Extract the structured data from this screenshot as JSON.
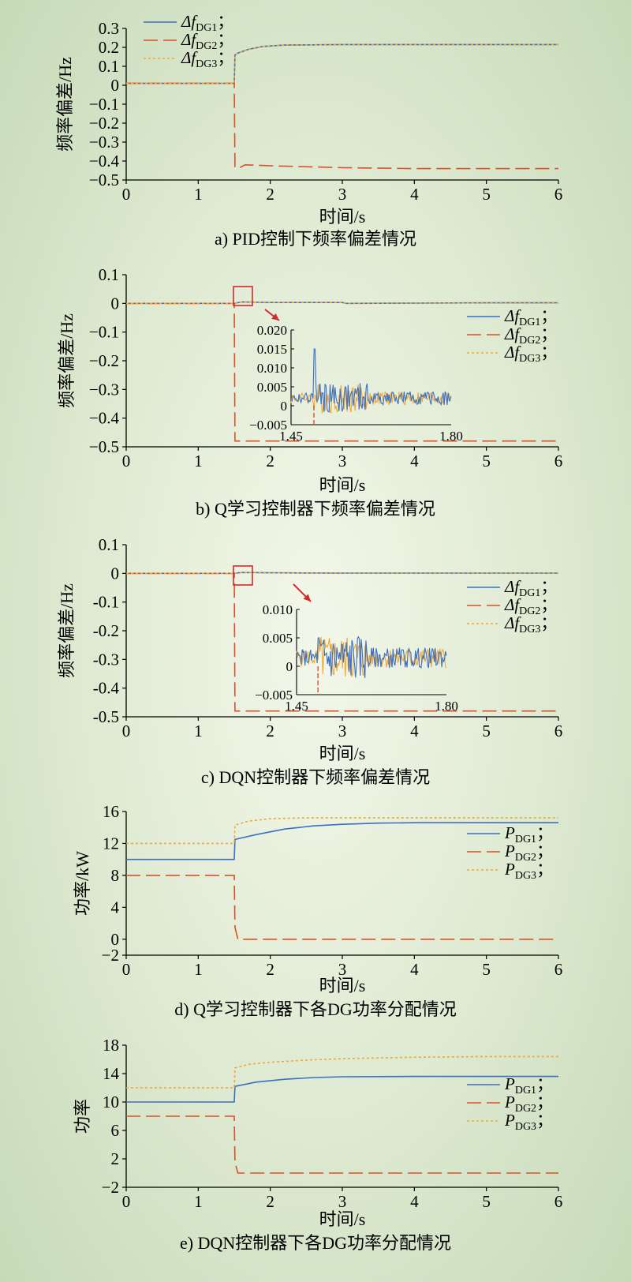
{
  "chart_data": [
    {
      "type": "line",
      "caption": "a) PID控制下频率偏差情况",
      "xlabel": "时间/s",
      "ylabel": "频率偏差/Hz",
      "xlim": [
        0,
        6
      ],
      "ylim": [
        -0.5,
        0.3
      ],
      "xticks": [
        0,
        1,
        2,
        3,
        4,
        5,
        6
      ],
      "xtick_labels": [
        "0",
        "1",
        "2",
        "3",
        "4",
        "5",
        "6"
      ],
      "yticks": [
        0.3,
        0.2,
        0.1,
        0,
        -0.1,
        -0.2,
        -0.3,
        -0.4,
        -0.5
      ],
      "ytick_labels": [
        "0.3",
        "0.2",
        "0.1",
        "0",
        "−0.1",
        "−0.2",
        "−0.3",
        "−0.4",
        "−0.5"
      ],
      "legend": "top-left",
      "series": [
        {
          "name": "ΔfDG1",
          "legend_main": "Δf",
          "legend_sub": "DG1",
          "color": "#3a6fc4",
          "dash": "solid",
          "x": [
            0,
            1.5,
            1.51,
            1.55,
            1.7,
            1.9,
            2.2,
            3,
            4,
            5,
            6
          ],
          "y": [
            0.01,
            0.01,
            0.16,
            0.17,
            0.19,
            0.205,
            0.212,
            0.215,
            0.215,
            0.215,
            0.215
          ]
        },
        {
          "name": "ΔfDG2",
          "legend_main": "Δf",
          "legend_sub": "DG2",
          "color": "#d9512c",
          "dash": "long",
          "x": [
            0,
            1.5,
            1.51,
            1.55,
            1.65,
            2.0,
            3,
            4,
            5,
            6
          ],
          "y": [
            0.01,
            0.01,
            -0.43,
            -0.44,
            -0.42,
            -0.425,
            -0.435,
            -0.44,
            -0.44,
            -0.44
          ]
        },
        {
          "name": "ΔfDG3",
          "legend_main": "Δf",
          "legend_sub": "DG3",
          "color": "#f0a830",
          "dash": "dot",
          "x": [
            0,
            1.5,
            1.51,
            1.55,
            1.7,
            1.9,
            2.2,
            3,
            4,
            5,
            6
          ],
          "y": [
            0.01,
            0.01,
            0.16,
            0.17,
            0.19,
            0.205,
            0.212,
            0.215,
            0.215,
            0.215,
            0.215
          ]
        }
      ]
    },
    {
      "type": "line",
      "caption": "b) Q学习控制器下频率偏差情况",
      "xlabel": "时间/s",
      "ylabel": "频率偏差/Hz",
      "xlim": [
        0,
        6
      ],
      "ylim": [
        -0.5,
        0.1
      ],
      "xticks": [
        0,
        1,
        2,
        3,
        4,
        5,
        6
      ],
      "xtick_labels": [
        "0",
        "1",
        "2",
        "3",
        "4",
        "5",
        "6"
      ],
      "yticks": [
        0.1,
        0,
        -0.1,
        -0.2,
        -0.3,
        -0.4,
        -0.5
      ],
      "ytick_labels": [
        "0.1",
        "0",
        "−0.1",
        "−0.2",
        "−0.3",
        "−0.4",
        "−0.5"
      ],
      "legend": "right",
      "series": [
        {
          "name": "ΔfDG1",
          "legend_main": "Δf",
          "legend_sub": "DG1",
          "color": "#3a6fc4",
          "dash": "solid",
          "x": [
            0,
            1.5,
            1.6,
            2.0,
            3.0,
            3.05,
            4,
            5,
            6
          ],
          "y": [
            0.0,
            0.0,
            0.005,
            0.003,
            0.003,
            0.0,
            0.001,
            0.002,
            0.002
          ]
        },
        {
          "name": "ΔfDG2",
          "legend_main": "Δf",
          "legend_sub": "DG2",
          "color": "#d9512c",
          "dash": "long",
          "x": [
            0,
            1.5,
            1.51,
            2,
            3,
            4,
            5,
            6
          ],
          "y": [
            0.0,
            0.0,
            -0.48,
            -0.48,
            -0.48,
            -0.48,
            -0.48,
            -0.48
          ]
        },
        {
          "name": "ΔfDG3",
          "legend_main": "Δf",
          "legend_sub": "DG3",
          "color": "#f0a830",
          "dash": "dot",
          "x": [
            0,
            1.5,
            1.6,
            2.0,
            3.0,
            3.05,
            4,
            5,
            6
          ],
          "y": [
            0.0,
            0.0,
            0.005,
            0.003,
            0.003,
            0.0,
            0.001,
            0.002,
            0.002
          ]
        }
      ],
      "inset": {
        "xlim": [
          1.45,
          1.8
        ],
        "ylim": [
          -0.005,
          0.02
        ],
        "xtick_labels": [
          "1.45",
          "1.80"
        ],
        "yticks": [
          0.02,
          0.015,
          0.01,
          0.005,
          0,
          -0.005
        ],
        "ytick_labels": [
          "0.020",
          "0.015",
          "0.010",
          "0.005",
          "0",
          "−0.005"
        ],
        "box_x": [
          1.45,
          1.8
        ],
        "box_y": [
          -0.005,
          0.02
        ]
      }
    },
    {
      "type": "line",
      "caption": "c) DQN控制器下频率偏差情况",
      "xlabel": "时间/s",
      "ylabel": "频率偏差/Hz",
      "xlim": [
        0,
        6
      ],
      "ylim": [
        -0.5,
        0.1
      ],
      "xticks": [
        0,
        1,
        2,
        3,
        4,
        5,
        6
      ],
      "xtick_labels": [
        "0",
        "1",
        "2",
        "3",
        "4",
        "5",
        "6"
      ],
      "yticks": [
        0.1,
        0,
        -0.1,
        -0.2,
        -0.3,
        -0.4,
        -0.5
      ],
      "ytick_labels": [
        "0.1",
        "0",
        "-0.1",
        "-0.2",
        "-0.3",
        "-0.4",
        "-0.5"
      ],
      "legend": "right",
      "series": [
        {
          "name": "ΔfDG1",
          "legend_main": "Δf",
          "legend_sub": "DG1",
          "color": "#3a6fc4",
          "dash": "solid",
          "x": [
            0,
            1.5,
            1.6,
            2.0,
            3.0,
            4,
            5,
            6
          ],
          "y": [
            0.0,
            0.0,
            0.003,
            0.002,
            0.001,
            0.001,
            0.001,
            0.001
          ]
        },
        {
          "name": "ΔfDG2",
          "legend_main": "Δf",
          "legend_sub": "DG2",
          "color": "#d9512c",
          "dash": "long",
          "x": [
            0,
            1.5,
            1.51,
            2,
            3,
            4,
            5,
            6
          ],
          "y": [
            0.0,
            0.0,
            -0.48,
            -0.48,
            -0.48,
            -0.48,
            -0.48,
            -0.48
          ]
        },
        {
          "name": "ΔfDG3",
          "legend_main": "Δf",
          "legend_sub": "DG3",
          "color": "#f0a830",
          "dash": "dot",
          "x": [
            0,
            1.5,
            1.6,
            2.0,
            3.0,
            4,
            5,
            6
          ],
          "y": [
            0.0,
            0.0,
            0.003,
            0.002,
            0.001,
            0.001,
            0.001,
            0.001
          ]
        }
      ],
      "inset": {
        "xlim": [
          1.45,
          1.8
        ],
        "ylim": [
          -0.005,
          0.01
        ],
        "xtick_labels": [
          "1.45",
          "1.80"
        ],
        "yticks": [
          0.01,
          0.005,
          0,
          -0.005
        ],
        "ytick_labels": [
          "0.010",
          "0.005",
          "0",
          "−0.005"
        ]
      }
    },
    {
      "type": "line",
      "caption": "d) Q学习控制器下各DG功率分配情况",
      "xlabel": "时间/s",
      "ylabel": "功率/kW",
      "xlim": [
        0,
        6
      ],
      "ylim": [
        -2,
        16
      ],
      "xticks": [
        0,
        1,
        2,
        3,
        4,
        5,
        6
      ],
      "xtick_labels": [
        "0",
        "1",
        "2",
        "3",
        "4",
        "5",
        "6"
      ],
      "yticks": [
        16,
        12,
        8,
        4,
        0,
        -2
      ],
      "ytick_labels": [
        "16",
        "12",
        "8",
        "4",
        "0",
        "−2"
      ],
      "legend": "right",
      "series": [
        {
          "name": "PDG1",
          "legend_main": "P",
          "legend_sub": "DG1",
          "color": "#3a6fc4",
          "dash": "solid",
          "x": [
            0,
            1.5,
            1.51,
            1.8,
            2.2,
            2.6,
            3,
            3.5,
            4,
            5,
            6
          ],
          "y": [
            10,
            10,
            12.5,
            13.1,
            13.8,
            14.2,
            14.4,
            14.55,
            14.6,
            14.6,
            14.6
          ]
        },
        {
          "name": "PDG2",
          "legend_main": "P",
          "legend_sub": "DG2",
          "color": "#d9512c",
          "dash": "long",
          "x": [
            0,
            1.5,
            1.51,
            1.55,
            2,
            3,
            4,
            5,
            6
          ],
          "y": [
            8,
            8,
            1.5,
            0,
            0,
            0,
            0,
            0,
            0
          ]
        },
        {
          "name": "PDG3",
          "legend_main": "P",
          "legend_sub": "DG3",
          "color": "#f0a830",
          "dash": "dot",
          "x": [
            0,
            1.5,
            1.51,
            1.7,
            2.0,
            2.5,
            3,
            4,
            5,
            6
          ],
          "y": [
            12,
            12,
            14.3,
            14.8,
            15.1,
            15.2,
            15.2,
            15.2,
            15.2,
            15.2
          ]
        }
      ]
    },
    {
      "type": "line",
      "caption": "e) DQN控制器下各DG功率分配情况",
      "xlabel": "时间/s",
      "ylabel": "功率",
      "xlim": [
        0,
        6
      ],
      "ylim": [
        -2,
        18
      ],
      "xticks": [
        0,
        1,
        2,
        3,
        4,
        5,
        6
      ],
      "xtick_labels": [
        "0",
        "1",
        "2",
        "3",
        "4",
        "5",
        "6"
      ],
      "yticks": [
        18,
        14,
        10,
        6,
        2,
        -2
      ],
      "ytick_labels": [
        "18",
        "14",
        "10",
        "6",
        "2",
        "−2"
      ],
      "legend": "right",
      "series": [
        {
          "name": "PDG1",
          "legend_main": "P",
          "legend_sub": "DG1",
          "color": "#3a6fc4",
          "dash": "solid",
          "x": [
            0,
            1.5,
            1.51,
            1.8,
            2.2,
            2.6,
            3,
            4,
            5,
            6
          ],
          "y": [
            10,
            10,
            12.2,
            12.8,
            13.2,
            13.45,
            13.55,
            13.6,
            13.6,
            13.6
          ]
        },
        {
          "name": "PDG2",
          "legend_main": "P",
          "legend_sub": "DG2",
          "color": "#d9512c",
          "dash": "long",
          "x": [
            0,
            1.5,
            1.51,
            1.55,
            2,
            3,
            4,
            5,
            6
          ],
          "y": [
            8,
            8,
            1.5,
            0,
            0,
            0,
            0,
            0,
            0
          ]
        },
        {
          "name": "PDG3",
          "legend_main": "P",
          "legend_sub": "DG3",
          "color": "#f0a830",
          "dash": "dot",
          "x": [
            0,
            1.5,
            1.51,
            1.7,
            2.0,
            2.5,
            3,
            4,
            5,
            6
          ],
          "y": [
            12,
            12,
            14.8,
            15.3,
            15.6,
            15.9,
            16.1,
            16.3,
            16.4,
            16.4
          ]
        }
      ]
    }
  ]
}
